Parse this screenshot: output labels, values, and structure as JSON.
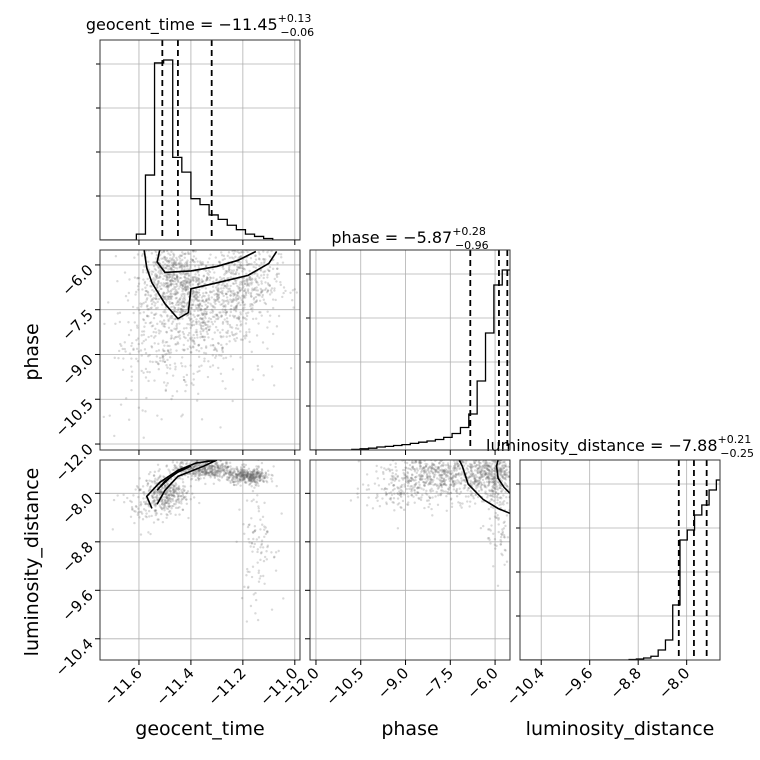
{
  "chart_data": {
    "type": "corner",
    "parameters": [
      "geocent_time",
      "phase",
      "luminosity_distance"
    ],
    "titles": {
      "geocent_time": {
        "name": "geocent_time",
        "median": "−11.45",
        "plus": "+0.13",
        "minus": "−0.06"
      },
      "phase": {
        "name": "phase",
        "median": "−5.87",
        "plus": "+0.28",
        "minus": "−0.96"
      },
      "luminosity_distance": {
        "name": "luminosity_distance",
        "median": "−7.88",
        "plus": "+0.21",
        "minus": "−0.25"
      }
    },
    "ranges": {
      "geocent_time": [
        -11.75,
        -10.98
      ],
      "phase": [
        -12.2,
        -5.5
      ],
      "luminosity_distance": [
        -10.75,
        -7.45
      ]
    },
    "ticks": {
      "geocent_time": [
        -11.6,
        -11.4,
        -11.2,
        -11.0
      ],
      "phase": [
        -12.0,
        -10.5,
        -9.0,
        -7.5,
        -6.0
      ],
      "luminosity_distance": [
        -10.4,
        -9.6,
        -8.8,
        -8.0
      ]
    },
    "tick_labels": {
      "geocent_time": [
        "−11.6",
        "−11.4",
        "−11.2",
        "−11.0"
      ],
      "phase": [
        "−12.0",
        "−10.5",
        "−9.0",
        "−7.5",
        "−6.0"
      ],
      "luminosity_distance": [
        "−10.4",
        "−9.6",
        "−8.8",
        "−8.0"
      ]
    },
    "quantiles": {
      "geocent_time": [
        -11.51,
        -11.45,
        -11.32
      ],
      "phase": [
        -6.83,
        -5.87,
        -5.59
      ],
      "luminosity_distance": [
        -8.13,
        -7.88,
        -7.67
      ]
    },
    "histograms": {
      "geocent_time": {
        "bin_start": -11.75,
        "bin_width": 0.035,
        "counts": [
          0.0,
          0.0,
          0.0,
          0.0,
          0.02,
          0.22,
          0.6,
          0.61,
          0.28,
          0.23,
          0.14,
          0.12,
          0.085,
          0.07,
          0.05,
          0.035,
          0.02,
          0.012,
          0.005,
          0.0,
          0.0,
          0.0
        ]
      },
      "phase": {
        "bin_start": -12.2,
        "bin_width": 0.28,
        "counts": [
          0.0,
          0.0,
          0.0,
          0.0,
          0.0,
          0.002,
          0.004,
          0.006,
          0.01,
          0.012,
          0.015,
          0.018,
          0.022,
          0.026,
          0.03,
          0.035,
          0.042,
          0.055,
          0.075,
          0.12,
          0.23,
          0.39,
          0.55,
          0.6
        ]
      },
      "luminosity_distance": {
        "bin_start": -10.75,
        "bin_width": 0.12,
        "counts": [
          0.0,
          0.0,
          0.0,
          0.0,
          0.0,
          0.0,
          0.0,
          0.0,
          0.0,
          0.0,
          0.0,
          0.0,
          0.0,
          0.0,
          0.0,
          0.002,
          0.004,
          0.008,
          0.015,
          0.04,
          0.08,
          0.22,
          0.48,
          0.52,
          0.58,
          0.62,
          0.68,
          0.72
        ]
      }
    },
    "density_2d": {
      "phase_vs_geocent_time": {
        "clouds": [
          {
            "x": -11.48,
            "y": -6.4,
            "sx": 0.06,
            "sy": 0.6,
            "n": 450
          },
          {
            "x": -11.38,
            "y": -7.4,
            "sx": 0.09,
            "sy": 0.9,
            "n": 700
          },
          {
            "x": -11.2,
            "y": -6.6,
            "sx": 0.07,
            "sy": 0.8,
            "n": 500
          },
          {
            "x": -11.55,
            "y": -8.5,
            "sx": 0.07,
            "sy": 1.0,
            "n": 120
          },
          {
            "x": -11.4,
            "y": -9.2,
            "sx": 0.18,
            "sy": 1.2,
            "n": 100
          }
        ],
        "contours": [
          [
            [
              -11.52,
              -5.5
            ],
            [
              -11.53,
              -5.9
            ],
            [
              -11.5,
              -6.25
            ],
            [
              -11.4,
              -6.2
            ],
            [
              -11.3,
              -6.05
            ],
            [
              -11.22,
              -5.85
            ],
            [
              -11.15,
              -5.55
            ]
          ],
          [
            [
              -11.58,
              -5.5
            ],
            [
              -11.57,
              -6.1
            ],
            [
              -11.55,
              -6.6
            ],
            [
              -11.5,
              -7.3
            ],
            [
              -11.45,
              -7.8
            ],
            [
              -11.41,
              -7.6
            ],
            [
              -11.4,
              -6.8
            ],
            [
              -11.3,
              -6.6
            ],
            [
              -11.18,
              -6.35
            ],
            [
              -11.1,
              -5.95
            ],
            [
              -11.07,
              -5.55
            ]
          ]
        ]
      },
      "luminosity_distance_vs_geocent_time": {
        "clouds": [
          {
            "x": -11.5,
            "y": -8.0,
            "sx": 0.04,
            "sy": 0.16,
            "n": 350
          },
          {
            "x": -11.35,
            "y": -7.6,
            "sx": 0.06,
            "sy": 0.08,
            "n": 450
          },
          {
            "x": -11.18,
            "y": -7.72,
            "sx": 0.04,
            "sy": 0.06,
            "n": 350
          },
          {
            "x": -11.14,
            "y": -8.7,
            "sx": 0.03,
            "sy": 0.6,
            "n": 120
          },
          {
            "x": -11.58,
            "y": -8.2,
            "sx": 0.05,
            "sy": 0.2,
            "n": 80
          }
        ],
        "contours": [
          [
            [
              -11.53,
              -7.95
            ],
            [
              -11.5,
              -7.8
            ],
            [
              -11.45,
              -7.65
            ],
            [
              -11.4,
              -7.55
            ],
            [
              -11.45,
              -7.62
            ],
            [
              -11.52,
              -7.9
            ]
          ],
          [
            [
              -11.55,
              -8.25
            ],
            [
              -11.57,
              -8.05
            ],
            [
              -11.52,
              -7.82
            ],
            [
              -11.45,
              -7.62
            ],
            [
              -11.38,
              -7.5
            ],
            [
              -11.3,
              -7.45
            ],
            [
              -11.35,
              -7.55
            ],
            [
              -11.45,
              -7.72
            ],
            [
              -11.5,
              -7.95
            ],
            [
              -11.53,
              -8.18
            ]
          ]
        ]
      },
      "luminosity_distance_vs_phase": {
        "clouds": [
          {
            "x": -6.0,
            "y": -7.7,
            "sx": 0.5,
            "sy": 0.2,
            "n": 500
          },
          {
            "x": -7.8,
            "y": -7.7,
            "sx": 0.9,
            "sy": 0.2,
            "n": 650
          },
          {
            "x": -9.3,
            "y": -7.9,
            "sx": 0.6,
            "sy": 0.2,
            "n": 120
          },
          {
            "x": -5.8,
            "y": -8.6,
            "sx": 0.25,
            "sy": 0.4,
            "n": 80
          }
        ],
        "contours": [
          [
            [
              -5.5,
              -8.0
            ],
            [
              -5.7,
              -7.9
            ],
            [
              -5.9,
              -7.75
            ],
            [
              -5.95,
              -7.55
            ],
            [
              -5.9,
              -7.45
            ]
          ],
          [
            [
              -5.5,
              -8.33
            ],
            [
              -5.9,
              -8.25
            ],
            [
              -6.4,
              -8.1
            ],
            [
              -6.9,
              -7.85
            ],
            [
              -7.1,
              -7.55
            ],
            [
              -7.2,
              -7.45
            ]
          ]
        ]
      }
    }
  }
}
